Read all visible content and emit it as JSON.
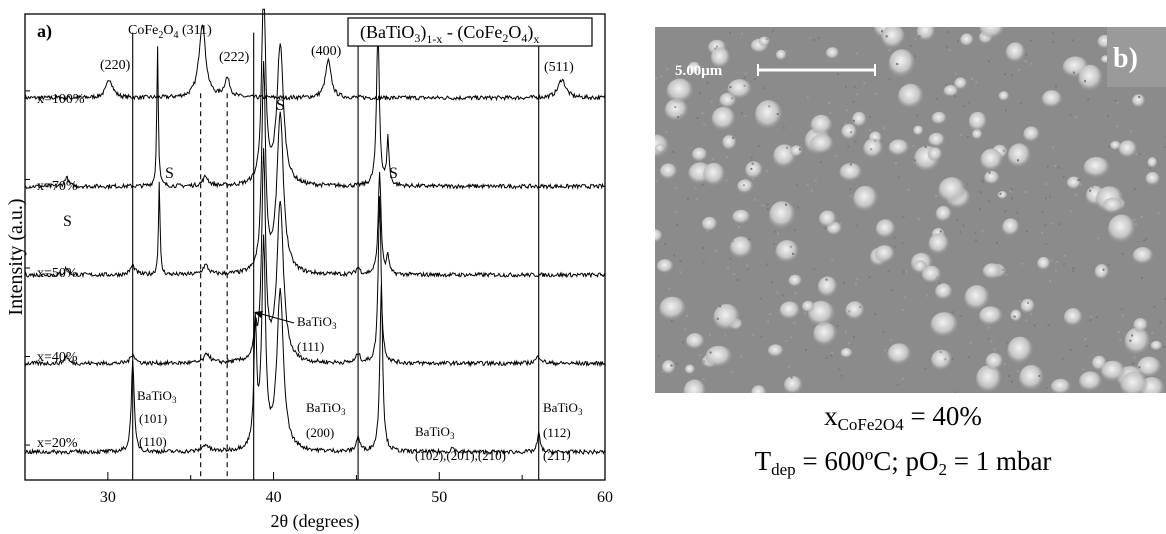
{
  "chart_data": {
    "type": "line",
    "panel_label": "a)",
    "legend_formula": {
      "p1": "(BaTiO",
      "p2": "3",
      "p3": ")",
      "p4": "1-x",
      "p5": " - (CoFe",
      "p6": "2",
      "p7": "O",
      "p8": "4",
      "p9": ")",
      "p10": "x"
    },
    "xlabel": "2θ (degrees)",
    "ylabel": "Intensity (a.u.)",
    "xlim": [
      25,
      60
    ],
    "x_ticks": [
      "30",
      "40",
      "50",
      "60"
    ],
    "series": [
      {
        "name": "x=100%",
        "baseline_pct": 82,
        "peaks": [
          [
            30.1,
            4,
            0.35
          ],
          [
            35.7,
            16,
            0.35
          ],
          [
            37.2,
            4,
            0.3
          ],
          [
            43.3,
            8,
            0.3
          ],
          [
            57.4,
            4,
            0.4
          ]
        ]
      },
      {
        "name": "x=70%",
        "baseline_pct": 63,
        "peaks": [
          [
            27.5,
            2,
            0.2
          ],
          [
            33.0,
            30,
            0.08
          ],
          [
            35.9,
            2,
            0.3
          ],
          [
            39.4,
            44,
            0.2
          ],
          [
            40.4,
            30,
            0.35
          ],
          [
            46.3,
            34,
            0.15
          ],
          [
            46.9,
            10,
            0.12
          ]
        ]
      },
      {
        "name": "x=50%",
        "baseline_pct": 44,
        "peaks": [
          [
            27.5,
            1.5,
            0.2
          ],
          [
            31.5,
            2,
            0.25
          ],
          [
            33.1,
            20,
            0.08
          ],
          [
            35.9,
            2,
            0.3
          ],
          [
            39.4,
            44,
            0.2
          ],
          [
            40.4,
            34,
            0.35
          ],
          [
            45.1,
            1.5,
            0.2
          ],
          [
            46.4,
            22,
            0.15
          ],
          [
            46.9,
            4,
            0.12
          ]
        ]
      },
      {
        "name": "x=40%",
        "baseline_pct": 25,
        "peaks": [
          [
            27.5,
            1.5,
            0.2
          ],
          [
            31.5,
            2,
            0.25
          ],
          [
            36.0,
            2,
            0.3
          ],
          [
            38.9,
            6,
            0.15
          ],
          [
            39.4,
            44,
            0.2
          ],
          [
            40.4,
            34,
            0.35
          ],
          [
            45.1,
            2,
            0.2
          ],
          [
            46.4,
            36,
            0.15
          ],
          [
            56.0,
            1.5,
            0.3
          ]
        ]
      },
      {
        "name": "x=20%",
        "baseline_pct": 6,
        "peaks": [
          [
            31.5,
            20,
            0.15
          ],
          [
            35.9,
            1.5,
            0.3
          ],
          [
            38.9,
            26,
            0.15
          ],
          [
            39.4,
            44,
            0.2
          ],
          [
            40.4,
            34,
            0.35
          ],
          [
            45.1,
            3,
            0.2
          ],
          [
            46.5,
            36,
            0.15
          ],
          [
            50.8,
            1,
            0.15
          ],
          [
            56.0,
            4,
            0.15
          ]
        ]
      }
    ],
    "vertical_lines_solid": [
      31.5,
      38.8,
      45.1,
      56.0
    ],
    "vertical_lines_dashed": [
      35.6,
      37.2
    ],
    "annotations": [
      {
        "id": "cofe-311",
        "parts": [
          "CoFe",
          "2",
          "O",
          "4",
          " (311)"
        ]
      },
      {
        "id": "hkl-220",
        "text": "(220)"
      },
      {
        "id": "hkl-222",
        "text": "(222)"
      },
      {
        "id": "hkl-400",
        "text": "(400)"
      },
      {
        "id": "hkl-511",
        "text": "(511)"
      },
      {
        "id": "s-top",
        "text": "S"
      },
      {
        "id": "s-70-left",
        "text": "S"
      },
      {
        "id": "s-70-right",
        "text": "S"
      },
      {
        "id": "s-70-far",
        "text": "S"
      },
      {
        "id": "bto-111-name",
        "parts": [
          "BaTiO",
          "3"
        ]
      },
      {
        "id": "bto-111-hkl",
        "text": "(111)"
      },
      {
        "id": "bto-101-name",
        "parts": [
          "BaTiO",
          "3"
        ]
      },
      {
        "id": "bto-101-hkl1",
        "text": "(101)"
      },
      {
        "id": "bto-101-hkl2",
        "text": "(110)"
      },
      {
        "id": "bto-200-name",
        "parts": [
          "BaTiO",
          "3"
        ]
      },
      {
        "id": "bto-200-hkl",
        "text": "(200)"
      },
      {
        "id": "bto-102-name",
        "parts": [
          "BaTiO",
          "3"
        ]
      },
      {
        "id": "bto-102-hkl",
        "text": "(102),(201),(210)"
      },
      {
        "id": "bto-112-name",
        "parts": [
          "BaTiO",
          "3"
        ]
      },
      {
        "id": "bto-112-hkl1",
        "text": "(112)"
      },
      {
        "id": "bto-112-hkl2",
        "text": "(211)"
      }
    ]
  },
  "sem": {
    "panel_label": "b)",
    "scale_bar_label": "5.00μm",
    "caption_line1": {
      "var": "x",
      "sub": "CoFe2O4",
      "rest": " = 40%"
    },
    "caption_line2": {
      "var": "T",
      "sub": "dep",
      "mid": " = 600ºC; pO",
      "sub2": "2",
      "rest": " = 1 mbar"
    }
  },
  "colors": {
    "line": "#000000",
    "sem_background": "#8c8c8c",
    "particle": "#d9d9d9"
  }
}
